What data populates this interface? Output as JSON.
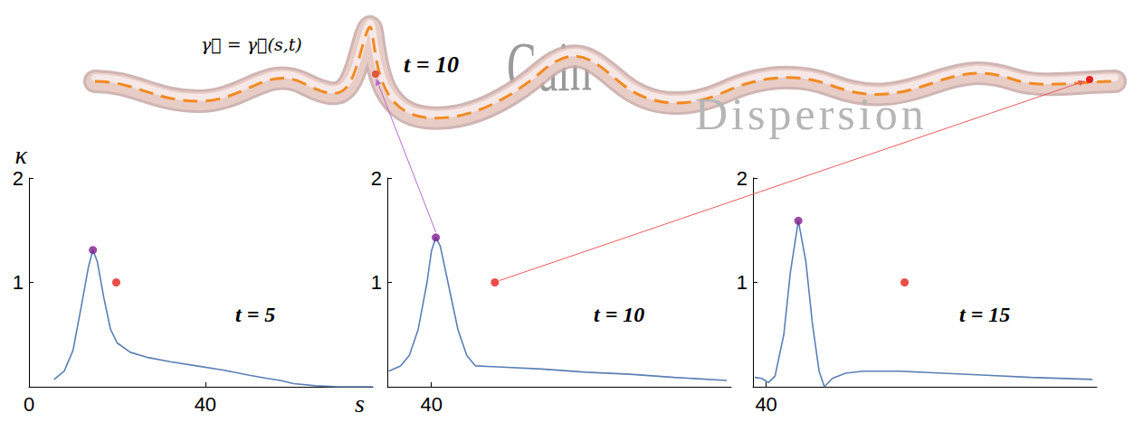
{
  "chart_data": [
    {
      "type": "line",
      "annotation": "t = 5",
      "x_label": "s",
      "y_label": "κ",
      "xlim": [
        0,
        78
      ],
      "xticks": [
        0,
        40
      ],
      "ylim": [
        0,
        2
      ],
      "yticks": [
        1,
        2
      ],
      "color": "#5b7fb4",
      "x": [
        5.7,
        8,
        10,
        12,
        13.5,
        14.5,
        15.5,
        17,
        18.5,
        20,
        23,
        27,
        32,
        38,
        44,
        50,
        54,
        57,
        60,
        65,
        70,
        78
      ],
      "values": [
        0.07,
        0.15,
        0.35,
        0.8,
        1.15,
        1.31,
        1.2,
        0.85,
        0.55,
        0.42,
        0.33,
        0.28,
        0.24,
        0.2,
        0.16,
        0.11,
        0.08,
        0.06,
        0.03,
        0.01,
        0,
        0
      ],
      "peak": {
        "x": 14.5,
        "y": 1.31,
        "color": "#7d1d8e"
      },
      "marker_point": {
        "x": 19.8,
        "y": 1,
        "color": "#e8201c"
      }
    },
    {
      "type": "line",
      "annotation": "t = 10",
      "xlim": [
        30,
        108
      ],
      "xticks": [
        40
      ],
      "ylim": [
        0,
        2
      ],
      "yticks": [
        1,
        2
      ],
      "color": "#5b7fb4",
      "x": [
        30.3,
        33,
        35,
        37,
        39,
        40,
        41,
        42,
        44,
        46,
        48,
        50,
        55,
        65,
        75,
        85,
        95,
        107
      ],
      "values": [
        0.15,
        0.2,
        0.3,
        0.55,
        1.0,
        1.3,
        1.43,
        1.35,
        0.95,
        0.55,
        0.3,
        0.2,
        0.19,
        0.17,
        0.14,
        0.12,
        0.09,
        0.06
      ],
      "peak": {
        "x": 41,
        "y": 1.43,
        "color": "#7d1d8e"
      },
      "marker_point": {
        "x": 54.4,
        "y": 1,
        "color": "#e8201c"
      }
    },
    {
      "type": "line",
      "annotation": "t = 15",
      "xlim": [
        37,
        115
      ],
      "xticks": [
        40
      ],
      "ylim": [
        0,
        2
      ],
      "yticks": [
        1,
        2
      ],
      "color": "#5b7fb4",
      "x": [
        37.4,
        39,
        40.5,
        42,
        44,
        45.5,
        47.3,
        49,
        50.5,
        52,
        53.2,
        55,
        58,
        62,
        70,
        80,
        90,
        100,
        114
      ],
      "values": [
        0.09,
        0.08,
        0.04,
        0.1,
        0.5,
        1.1,
        1.59,
        1.2,
        0.6,
        0.15,
        0,
        0.08,
        0.13,
        0.15,
        0.15,
        0.13,
        0.11,
        0.09,
        0.07
      ],
      "peak": {
        "x": 47.3,
        "y": 1.59,
        "color": "#7d1d8e"
      },
      "marker_point": {
        "x": 71.4,
        "y": 1,
        "color": "#e8201c"
      }
    }
  ],
  "diagram": {
    "curve_label": "γ⃗ = γ⃗(s,t)",
    "time_label": "t = 10",
    "gain_label": "Gain",
    "dispersion_label": "Dispersion"
  }
}
